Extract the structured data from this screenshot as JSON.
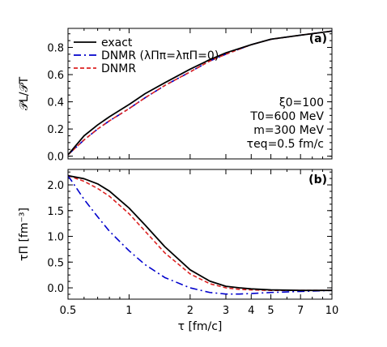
{
  "chart_data": [
    {
      "type": "line",
      "panel_label": "(a)",
      "ylabel": "𝒫L/𝒫T",
      "xlabel": "",
      "xscale": "log",
      "xlim": [
        0.5,
        10
      ],
      "ylim": [
        -0.02,
        0.94
      ],
      "x_ticks": [
        0.5,
        1,
        2,
        3,
        4,
        5,
        7,
        10
      ],
      "y_ticks": [
        0.0,
        0.2,
        0.4,
        0.6,
        0.8
      ],
      "y_tick_labels": [
        "0.0",
        "0.2",
        "0.4",
        "0.6",
        "0.8"
      ],
      "legend_position": "top-left",
      "legend_labels": [
        "exact",
        "DNMR (λΠπ=λπΠ=0)",
        "DNMR"
      ],
      "annotations": [
        "ξ0=100",
        "T0=600 MeV",
        "m=300 MeV",
        "τeq=0.5 fm/c"
      ],
      "series": [
        {
          "name": "exact",
          "color": "#000000",
          "dash": "solid",
          "x": [
            0.5,
            0.6,
            0.7,
            0.8,
            1.0,
            1.2,
            1.5,
            2.0,
            2.5,
            3.0,
            4.0,
            5.0,
            7.0,
            10.0
          ],
          "y": [
            0.01,
            0.15,
            0.23,
            0.29,
            0.38,
            0.46,
            0.54,
            0.64,
            0.71,
            0.76,
            0.82,
            0.86,
            0.89,
            0.92
          ]
        },
        {
          "name": "DNMR (λΠπ=λπΠ=0)",
          "color": "#0000cc",
          "dash": "dashdot",
          "x": [
            0.5,
            0.6,
            0.7,
            0.8,
            1.0,
            1.2,
            1.5,
            2.0,
            2.5,
            3.0,
            4.0,
            5.0,
            7.0,
            10.0
          ],
          "y": [
            0.01,
            0.12,
            0.2,
            0.26,
            0.35,
            0.43,
            0.52,
            0.62,
            0.7,
            0.75,
            0.82,
            0.86,
            0.89,
            0.92
          ]
        },
        {
          "name": "DNMR",
          "color": "#dd2222",
          "dash": "dashed",
          "x": [
            0.5,
            0.6,
            0.7,
            0.8,
            1.0,
            1.2,
            1.5,
            2.0,
            2.5,
            3.0,
            4.0,
            5.0,
            7.0,
            10.0
          ],
          "y": [
            0.01,
            0.12,
            0.2,
            0.26,
            0.35,
            0.43,
            0.52,
            0.62,
            0.7,
            0.75,
            0.82,
            0.86,
            0.89,
            0.92
          ]
        }
      ]
    },
    {
      "type": "line",
      "panel_label": "(b)",
      "ylabel": "τΠ [fm⁻³]",
      "xlabel": "τ [fm/c]",
      "xscale": "log",
      "xlim": [
        0.5,
        10
      ],
      "ylim": [
        -0.22,
        2.3
      ],
      "x_ticks": [
        0.5,
        1,
        2,
        3,
        4,
        5,
        7,
        10
      ],
      "x_tick_labels": [
        "0.5",
        "1",
        "2",
        "3",
        "4",
        "5",
        "7",
        "10"
      ],
      "y_ticks": [
        0.0,
        0.5,
        1.0,
        1.5,
        2.0
      ],
      "y_tick_labels": [
        "0.0",
        "0.5",
        "1.0",
        "1.5",
        "2.0"
      ],
      "series": [
        {
          "name": "exact",
          "color": "#000000",
          "dash": "solid",
          "x": [
            0.5,
            0.6,
            0.7,
            0.8,
            1.0,
            1.2,
            1.5,
            2.0,
            2.5,
            3.0,
            3.5,
            4.0,
            5.0,
            7.0,
            10.0
          ],
          "y": [
            2.18,
            2.12,
            2.02,
            1.88,
            1.55,
            1.22,
            0.8,
            0.35,
            0.13,
            0.03,
            0.0,
            -0.02,
            -0.04,
            -0.05,
            -0.05
          ]
        },
        {
          "name": "DNMR (λΠπ=λπΠ=0)",
          "color": "#0000cc",
          "dash": "dashdot",
          "x": [
            0.5,
            0.6,
            0.7,
            0.8,
            1.0,
            1.2,
            1.5,
            2.0,
            2.5,
            3.0,
            3.5,
            4.0,
            5.0,
            7.0,
            10.0
          ],
          "y": [
            2.18,
            1.72,
            1.38,
            1.1,
            0.72,
            0.45,
            0.2,
            0.0,
            -0.09,
            -0.12,
            -0.12,
            -0.11,
            -0.09,
            -0.07,
            -0.05
          ]
        },
        {
          "name": "DNMR",
          "color": "#dd2222",
          "dash": "dashed",
          "x": [
            0.5,
            0.6,
            0.7,
            0.8,
            1.0,
            1.2,
            1.5,
            2.0,
            2.5,
            3.0,
            3.5,
            4.0,
            5.0,
            7.0,
            10.0
          ],
          "y": [
            2.18,
            2.07,
            1.93,
            1.78,
            1.44,
            1.1,
            0.68,
            0.27,
            0.08,
            0.0,
            -0.03,
            -0.04,
            -0.05,
            -0.05,
            -0.05
          ]
        }
      ]
    }
  ]
}
